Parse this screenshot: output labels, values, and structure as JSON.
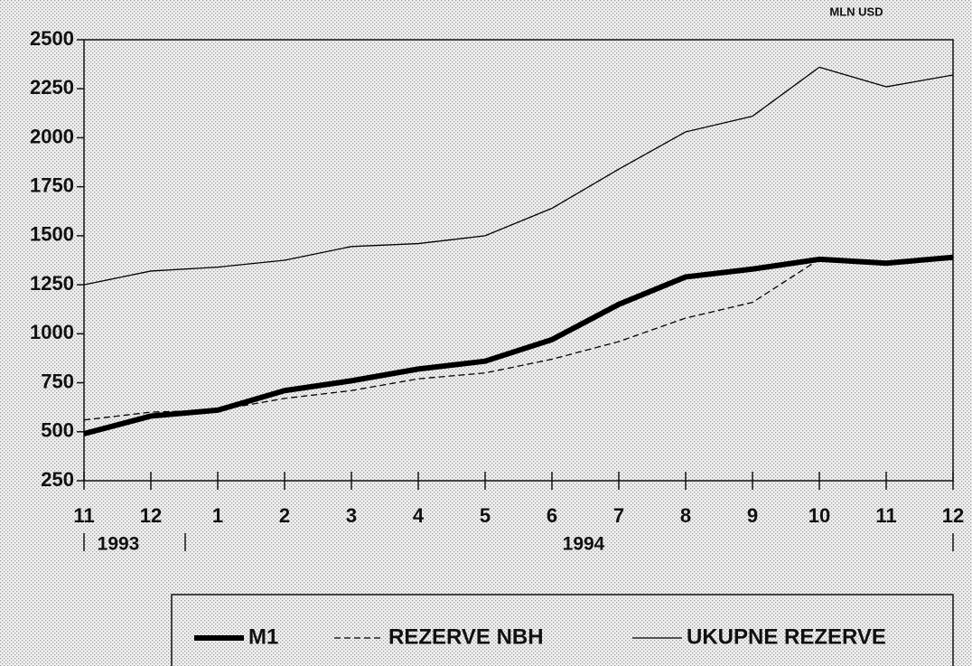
{
  "chart_data": {
    "type": "line",
    "unit": "MLN USD",
    "categories": [
      "11",
      "12",
      "1",
      "2",
      "3",
      "4",
      "5",
      "6",
      "7",
      "8",
      "9",
      "10",
      "11",
      "12"
    ],
    "years": [
      "1993",
      "1994"
    ],
    "series": [
      {
        "name": "M1",
        "color": "#000000",
        "style": "thick",
        "values": [
          490,
          580,
          610,
          710,
          760,
          820,
          860,
          970,
          1150,
          1290,
          1330,
          1380,
          1360,
          1390
        ]
      },
      {
        "name": "REZERVE NBH",
        "color": "#000000",
        "style": "dashed",
        "values": [
          560,
          600,
          610,
          670,
          710,
          770,
          800,
          870,
          960,
          1080,
          1160,
          1380,
          1360,
          1390
        ]
      },
      {
        "name": "UKUPNE REZERVE",
        "color": "#000000",
        "style": "thin",
        "values": [
          1250,
          1320,
          1340,
          1375,
          1445,
          1460,
          1500,
          1640,
          1840,
          2030,
          2110,
          2360,
          2260,
          2320
        ]
      }
    ],
    "ylim": [
      250,
      2500
    ],
    "yticks": [
      250,
      500,
      750,
      1000,
      1250,
      1500,
      1750,
      2000,
      2250,
      2500
    ],
    "legend": "bottom"
  }
}
